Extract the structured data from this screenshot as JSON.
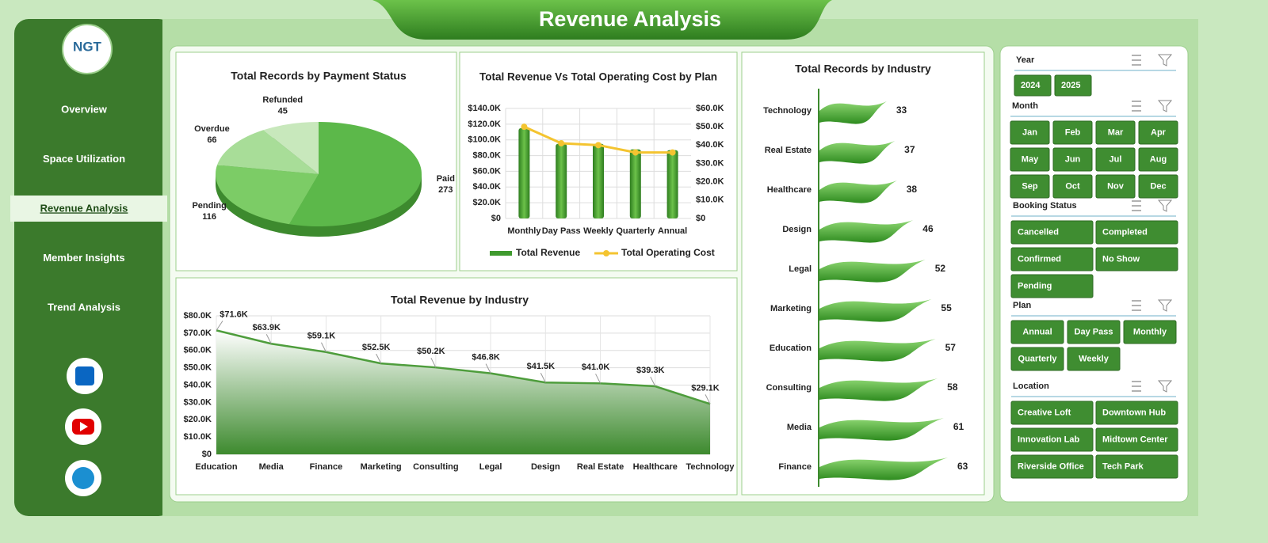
{
  "header": {
    "title": "Revenue Analysis",
    "logo": "NGT"
  },
  "nav": {
    "items": [
      "Overview",
      "Space Utilization",
      "Revenue Analysis",
      "Member Insights",
      "Trend Analysis"
    ],
    "active": 2
  },
  "chart_data": [
    {
      "type": "pie",
      "title": "Total Records by Payment Status",
      "categories": [
        "Paid",
        "Pending",
        "Overdue",
        "Refunded"
      ],
      "values": [
        273,
        116,
        66,
        45
      ],
      "colors": [
        "#5cb84a",
        "#7ccc66",
        "#a8dd98",
        "#c8e8bc"
      ]
    },
    {
      "type": "combo",
      "title": "Total Revenue Vs Total Operating Cost by Plan",
      "categories": [
        "Monthly",
        "Day Pass",
        "Weekly",
        "Quarterly",
        "Annual"
      ],
      "series": [
        {
          "name": "Total Revenue",
          "color": "#3f9a2e",
          "kind": "bar",
          "values": [
            115000,
            95000,
            95000,
            88000,
            87000
          ]
        },
        {
          "name": "Total Operating Cost",
          "color": "#f4c430",
          "kind": "line",
          "axis": "y2",
          "values": [
            50000,
            41000,
            40000,
            36000,
            36000
          ]
        }
      ],
      "ylim": [
        0,
        140000
      ],
      "yticks": [
        {
          "value": 0,
          "label": "$0"
        },
        {
          "value": 20000,
          "label": "$20.0K"
        },
        {
          "value": 40000,
          "label": "$40.0K"
        },
        {
          "value": 60000,
          "label": "$60.0K"
        },
        {
          "value": 80000,
          "label": "$80.0K"
        },
        {
          "value": 100000,
          "label": "$100.0K"
        },
        {
          "value": 120000,
          "label": "$120.0K"
        },
        {
          "value": 140000,
          "label": "$140.0K"
        }
      ],
      "y2lim": [
        0,
        60000
      ],
      "y2ticks": [
        {
          "value": 0,
          "label": "$0"
        },
        {
          "value": 10000,
          "label": "$10.0K"
        },
        {
          "value": 20000,
          "label": "$20.0K"
        },
        {
          "value": 30000,
          "label": "$30.0K"
        },
        {
          "value": 40000,
          "label": "$40.0K"
        },
        {
          "value": 50000,
          "label": "$50.0K"
        },
        {
          "value": 60000,
          "label": "$60.0K"
        }
      ],
      "grid": true
    },
    {
      "type": "area",
      "title": "Total Revenue by Industry",
      "color": "#4e9d3c",
      "categories": [
        "Education",
        "Media",
        "Finance",
        "Marketing",
        "Consulting",
        "Legal",
        "Design",
        "Real Estate",
        "Healthcare",
        "Technology"
      ],
      "values": [
        71600,
        63900,
        59100,
        52500,
        50200,
        46800,
        41500,
        41000,
        39300,
        29100
      ],
      "value_labels": [
        "$71.6K",
        "$63.9K",
        "$59.1K",
        "$52.5K",
        "$50.2K",
        "$46.8K",
        "$41.5K",
        "$41.0K",
        "$39.3K",
        "$29.1K"
      ],
      "ylim": [
        0,
        80000
      ],
      "yticks": [
        {
          "value": 0,
          "label": "$0"
        },
        {
          "value": 10000,
          "label": "$10.0K"
        },
        {
          "value": 20000,
          "label": "$20.0K"
        },
        {
          "value": 30000,
          "label": "$30.0K"
        },
        {
          "value": 40000,
          "label": "$40.0K"
        },
        {
          "value": 50000,
          "label": "$50.0K"
        },
        {
          "value": 60000,
          "label": "$60.0K"
        },
        {
          "value": 70000,
          "label": "$70.0K"
        },
        {
          "value": 80000,
          "label": "$80.0K"
        }
      ],
      "grid": true
    },
    {
      "type": "hbar",
      "title": "Total Records by Industry",
      "color": "#4fae3c",
      "categories": [
        "Technology",
        "Real Estate",
        "Healthcare",
        "Design",
        "Legal",
        "Marketing",
        "Education",
        "Consulting",
        "Media",
        "Finance"
      ],
      "values": [
        33,
        37,
        38,
        46,
        52,
        55,
        57,
        58,
        61,
        63
      ]
    }
  ],
  "slicers": [
    {
      "title": "Year",
      "items": [
        "2024",
        "2025"
      ]
    },
    {
      "title": "Month",
      "items": [
        "Jan",
        "Feb",
        "Mar",
        "Apr",
        "May",
        "Jun",
        "Jul",
        "Aug",
        "Sep",
        "Oct",
        "Nov",
        "Dec"
      ]
    },
    {
      "title": "Booking Status",
      "items": [
        "Cancelled",
        "Completed",
        "Confirmed",
        "No Show",
        "Pending"
      ]
    },
    {
      "title": "Plan",
      "items": [
        "Annual",
        "Day Pass",
        "Monthly",
        "Quarterly",
        "Weekly"
      ]
    },
    {
      "title": "Location",
      "items": [
        "Creative Loft",
        "Downtown Hub",
        "Innovation Lab",
        "Midtown Center",
        "Riverside Office",
        "Tech Park"
      ]
    }
  ]
}
